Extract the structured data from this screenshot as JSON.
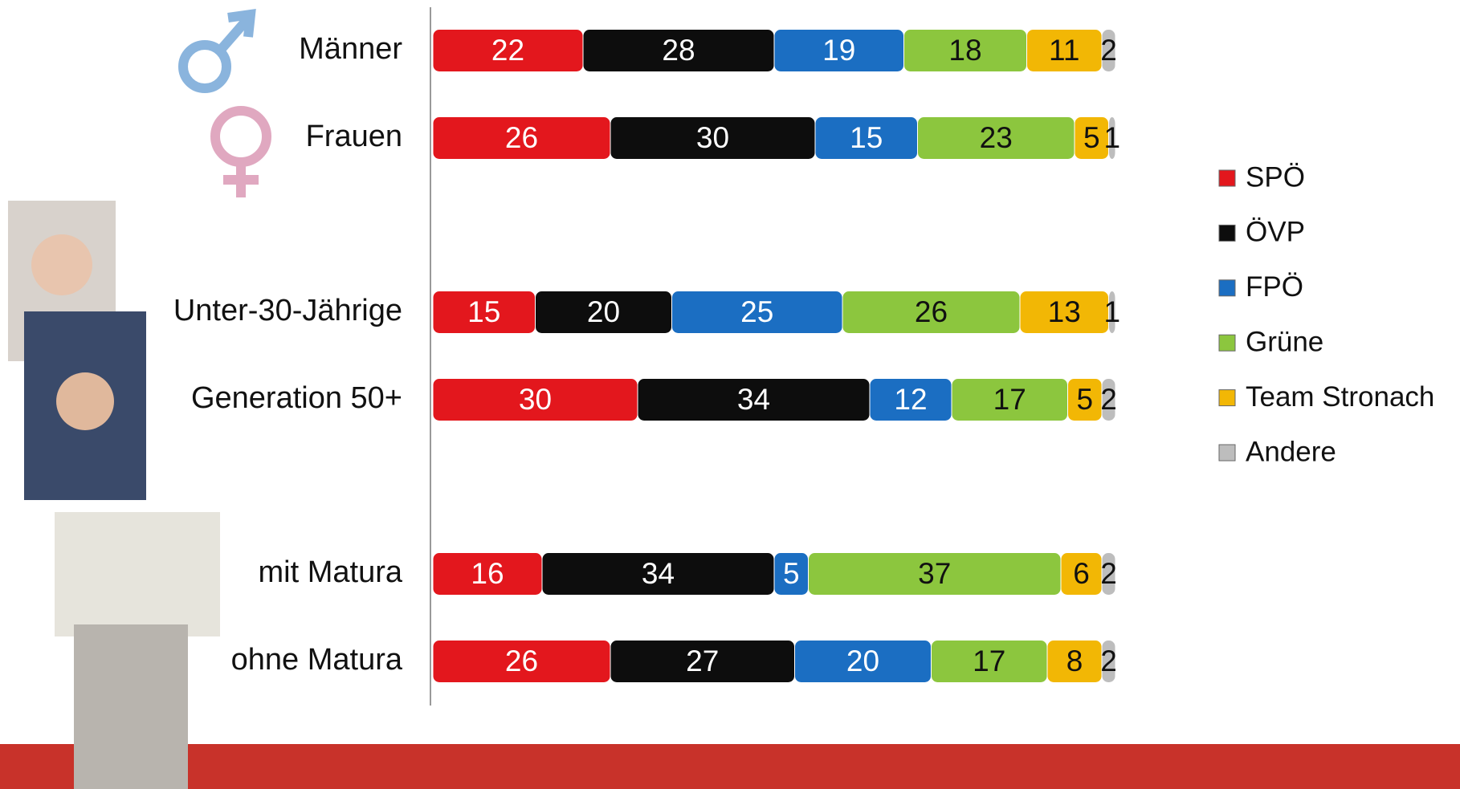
{
  "chart_data": {
    "type": "stacked-bar-horizontal",
    "categories": [
      "Männer",
      "Frauen",
      "Unter-30-Jährige",
      "Generation 50+",
      "mit Matura",
      "ohne Matura"
    ],
    "xlim": [
      0,
      100
    ],
    "series": [
      {
        "name": "SPÖ",
        "color": "#e3171d",
        "values": [
          22,
          26,
          15,
          30,
          16,
          26
        ]
      },
      {
        "name": "ÖVP",
        "color": "#0d0d0d",
        "values": [
          28,
          30,
          20,
          34,
          34,
          27
        ]
      },
      {
        "name": "FPÖ",
        "color": "#1b6ec2",
        "values": [
          19,
          15,
          25,
          12,
          5,
          20
        ]
      },
      {
        "name": "Grüne",
        "color": "#8cc63e",
        "values": [
          18,
          23,
          26,
          17,
          37,
          17
        ]
      },
      {
        "name": "Team Stronach",
        "color": "#f2b705",
        "values": [
          11,
          5,
          13,
          5,
          6,
          8
        ]
      },
      {
        "name": "Andere",
        "color": "#bdbdbd",
        "values": [
          2,
          1,
          1,
          2,
          2,
          2
        ]
      }
    ]
  }
}
